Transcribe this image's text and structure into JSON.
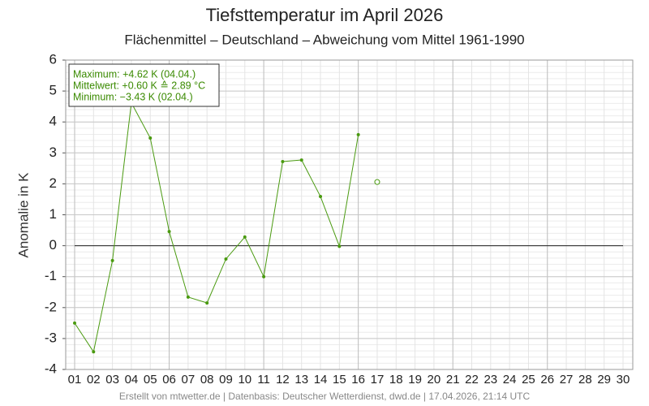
{
  "chart_data": {
    "type": "line",
    "title": "Tiefsttemperatur im April 2026",
    "subtitle": "Flächenmittel – Deutschland – Abweichung vom Mittel 1961-1990",
    "ylabel": "Anomalie in K",
    "footer": "Erstellt von mtwetter.de | Datenbasis: Deutscher Wetterdienst, dwd.de | 17.04.2026, 21:14 UTC",
    "annotations": [
      "Maximum: +4.62 K  (04.04.)",
      "Mittelwert: +0.60 K  ≙  2.89 °C",
      "Minimum:  −3.43 K  (02.04.)"
    ],
    "categories": [
      "01",
      "02",
      "03",
      "04",
      "05",
      "06",
      "07",
      "08",
      "09",
      "10",
      "11",
      "12",
      "13",
      "14",
      "15",
      "16",
      "17",
      "18",
      "19",
      "20",
      "21",
      "22",
      "23",
      "24",
      "25",
      "26",
      "27",
      "28",
      "29",
      "30"
    ],
    "series": [
      {
        "color": "#4a9a10",
        "values": [
          -2.5,
          -3.43,
          -0.48,
          4.62,
          3.48,
          0.46,
          -1.66,
          -1.85,
          -0.43,
          0.28,
          -1.0,
          2.72,
          2.77,
          1.59,
          -0.02,
          3.59,
          null,
          null,
          null,
          null,
          null,
          null,
          null,
          null,
          null,
          null,
          null,
          null,
          null,
          null
        ]
      },
      {
        "color": "#4a9a10",
        "marker": "open",
        "values": [
          null,
          null,
          null,
          null,
          null,
          null,
          null,
          null,
          null,
          null,
          null,
          null,
          null,
          null,
          null,
          null,
          2.06,
          null,
          null,
          null,
          null,
          null,
          null,
          null,
          null,
          null,
          null,
          null,
          null,
          null
        ]
      }
    ],
    "ylim": [
      -4,
      6
    ],
    "yticks": [
      -4,
      -3,
      -2,
      -1,
      0,
      1,
      2,
      3,
      4,
      5,
      6
    ],
    "grid": true
  }
}
